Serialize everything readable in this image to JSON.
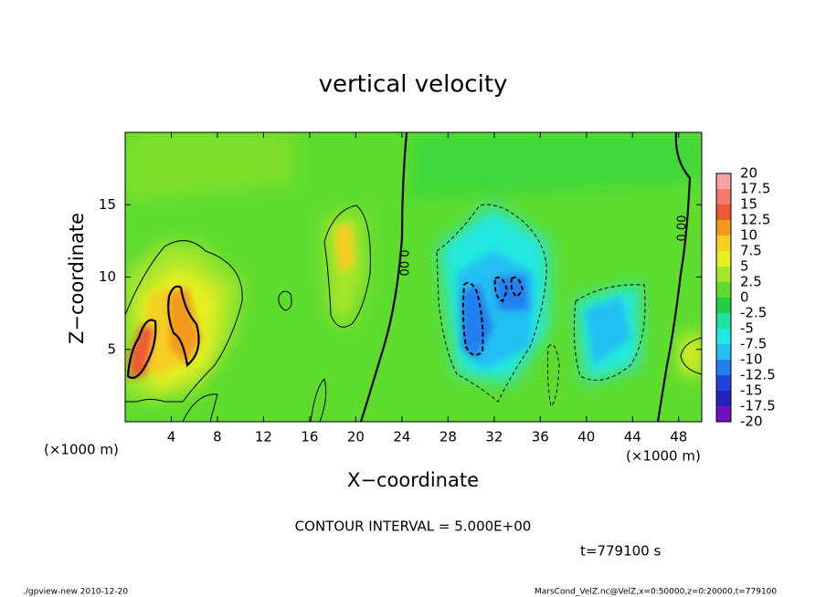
{
  "chart_data": {
    "type": "contour",
    "title": "vertical velocity",
    "xlabel": "X−coordinate",
    "ylabel": "Z−coordinate",
    "x_unit_left": "(×1000 m)",
    "x_unit_right": "(×1000 m)",
    "xlim": [
      0,
      50
    ],
    "ylim": [
      0,
      20
    ],
    "xticks": [
      4,
      8,
      12,
      16,
      20,
      24,
      28,
      32,
      36,
      40,
      44,
      48
    ],
    "yticks": [
      5,
      10,
      15
    ],
    "contour_labels": [
      "0.00",
      "0.00"
    ],
    "contour_interval": "CONTOUR INTERVAL = 5.000E+00",
    "time": "t=779100 s",
    "colorbar": {
      "levels": [
        20,
        17.5,
        15,
        12.5,
        10,
        7.5,
        5,
        2.5,
        0,
        -2.5,
        -5,
        -7.5,
        -10,
        -12.5,
        -15,
        -17.5,
        -20
      ],
      "colors": [
        "#f5a3a3",
        "#f27a6a",
        "#ee5a32",
        "#f29a1c",
        "#f5cf22",
        "#e6ef22",
        "#a6e62a",
        "#5edc2e",
        "#22cf40",
        "#22e0a0",
        "#22e8e2",
        "#22bff2",
        "#2280f0",
        "#2242e0",
        "#2222c0",
        "#7012c2"
      ]
    },
    "footer_left": "./gpview-new  2010-12-20",
    "footer_right": "MarsCond_VelZ.nc@VelZ,x=0:50000,z=0:20000,t=779100"
  }
}
